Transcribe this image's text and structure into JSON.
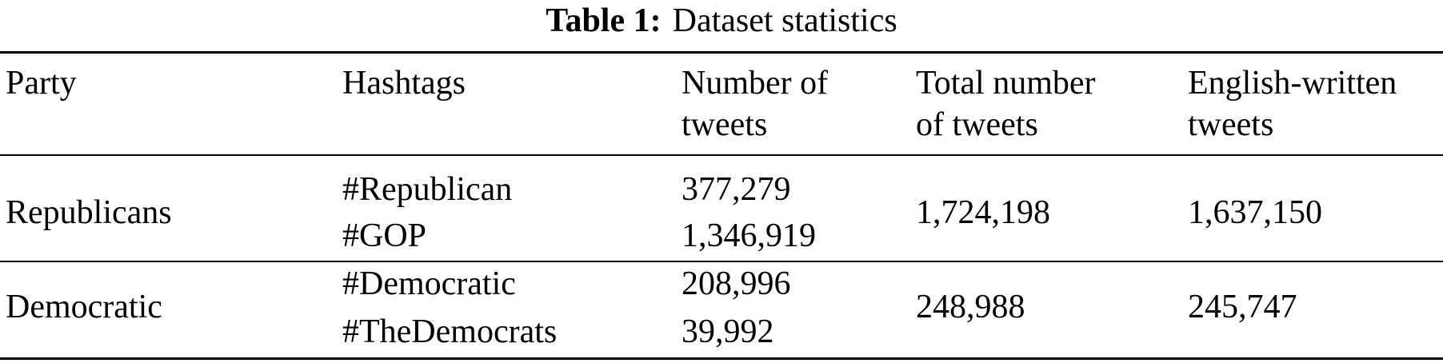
{
  "caption": {
    "label": "Table 1:",
    "text": "Dataset statistics"
  },
  "table": {
    "headers": {
      "party": "Party",
      "hashtags": "Hashtags",
      "num_tweets_line1": "Number of",
      "num_tweets_line2": "tweets",
      "total_line1": "Total number",
      "total_line2": "of tweets",
      "english_line1": "English-written",
      "english_line2": "tweets"
    },
    "rows": [
      {
        "party": "Republicans",
        "hashtags": [
          "#Republican",
          "#GOP"
        ],
        "num_tweets": [
          "377,279",
          "1,346,919"
        ],
        "total": "1,724,198",
        "english": "1,637,150"
      },
      {
        "party": "Democratic",
        "hashtags": [
          "#Democratic",
          "#TheDemocrats"
        ],
        "num_tweets": [
          "208,996",
          "39,992"
        ],
        "total": "248,988",
        "english": "245,747"
      }
    ]
  }
}
